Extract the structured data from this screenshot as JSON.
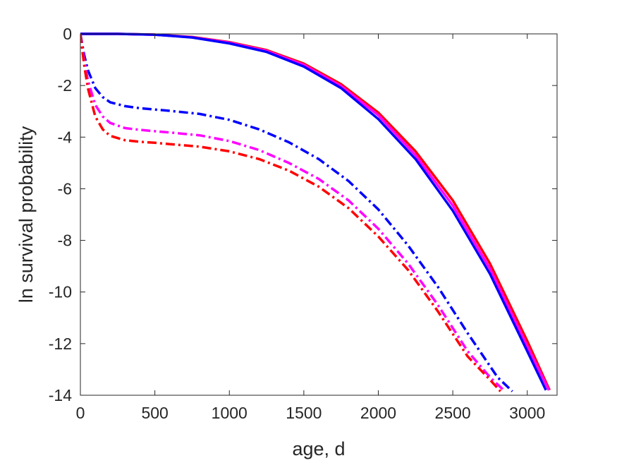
{
  "chart_data": {
    "type": "line",
    "title": "",
    "xlabel": "age, d",
    "ylabel": "ln survival probability",
    "xlim": [
      0,
      3200
    ],
    "ylim": [
      -14,
      0
    ],
    "xticks": [
      0,
      500,
      1000,
      1500,
      2000,
      2500,
      3000
    ],
    "yticks": [
      0,
      -2,
      -4,
      -6,
      -8,
      -10,
      -12,
      -14
    ],
    "grid": false,
    "legend": "none",
    "series": [
      {
        "color": "#ff0000",
        "style": "solid",
        "x": [
          0,
          250,
          500,
          750,
          1000,
          1250,
          1500,
          1750,
          2000,
          2250,
          2500,
          2750,
          3000,
          3150
        ],
        "y": [
          0,
          0,
          -0.03,
          -0.12,
          -0.32,
          -0.63,
          -1.15,
          -1.95,
          -3.05,
          -4.55,
          -6.45,
          -8.9,
          -11.9,
          -13.8
        ]
      },
      {
        "color": "#ff00ff",
        "style": "solid",
        "x": [
          0,
          250,
          500,
          750,
          1000,
          1250,
          1500,
          1750,
          2000,
          2250,
          2500,
          2750,
          3000,
          3145
        ],
        "y": [
          0,
          0,
          -0.03,
          -0.13,
          -0.34,
          -0.66,
          -1.2,
          -2.02,
          -3.15,
          -4.7,
          -6.65,
          -9.1,
          -12.1,
          -13.8
        ]
      },
      {
        "color": "#0000ff",
        "style": "solid",
        "x": [
          0,
          250,
          500,
          750,
          1000,
          1250,
          1500,
          1750,
          2000,
          2250,
          2500,
          2750,
          3000,
          3125
        ],
        "y": [
          0,
          0,
          -0.03,
          -0.14,
          -0.37,
          -0.7,
          -1.27,
          -2.1,
          -3.3,
          -4.85,
          -6.85,
          -9.3,
          -12.3,
          -13.8
        ]
      },
      {
        "color": "#0000ff",
        "style": "dashdot",
        "x": [
          0,
          25,
          50,
          100,
          150,
          200,
          300,
          400,
          500,
          600,
          800,
          1000,
          1200,
          1400,
          1600,
          1800,
          2000,
          2200,
          2400,
          2600,
          2800,
          2900
        ],
        "y": [
          0,
          -0.8,
          -1.4,
          -2.1,
          -2.45,
          -2.65,
          -2.8,
          -2.88,
          -2.93,
          -2.98,
          -3.1,
          -3.33,
          -3.7,
          -4.2,
          -4.85,
          -5.7,
          -6.8,
          -8.2,
          -9.8,
          -11.6,
          -13.3,
          -13.85
        ]
      },
      {
        "color": "#ff00ff",
        "style": "dashdot",
        "x": [
          0,
          25,
          50,
          100,
          150,
          200,
          300,
          400,
          500,
          600,
          800,
          1000,
          1200,
          1400,
          1600,
          1800,
          2000,
          2200,
          2400,
          2600,
          2750,
          2850
        ],
        "y": [
          0,
          -1.0,
          -1.8,
          -2.75,
          -3.2,
          -3.45,
          -3.65,
          -3.72,
          -3.77,
          -3.82,
          -3.93,
          -4.15,
          -4.5,
          -5.0,
          -5.62,
          -6.45,
          -7.55,
          -8.9,
          -10.5,
          -12.3,
          -13.3,
          -13.85
        ]
      },
      {
        "color": "#ff0000",
        "style": "dashdot",
        "x": [
          0,
          25,
          50,
          100,
          150,
          200,
          300,
          400,
          500,
          600,
          800,
          1000,
          1200,
          1400,
          1600,
          1800,
          2000,
          2200,
          2400,
          2600,
          2750,
          2820
        ],
        "y": [
          0,
          -1.2,
          -2.1,
          -3.2,
          -3.7,
          -3.95,
          -4.12,
          -4.18,
          -4.22,
          -4.27,
          -4.37,
          -4.55,
          -4.85,
          -5.3,
          -5.92,
          -6.75,
          -7.85,
          -9.15,
          -10.75,
          -12.5,
          -13.4,
          -13.85
        ]
      }
    ]
  }
}
